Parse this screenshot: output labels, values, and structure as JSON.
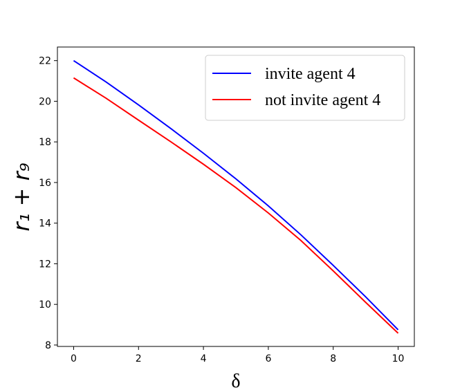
{
  "chart_data": {
    "type": "line",
    "xlabel": "δ",
    "ylabel": "r₁ + r₉",
    "x": [
      0,
      1,
      2,
      3,
      4,
      5,
      6,
      7,
      8,
      9,
      10
    ],
    "series": [
      {
        "name": "invite agent 4",
        "color": "#0000ff",
        "values": [
          22.0,
          20.95,
          19.82,
          18.65,
          17.44,
          16.18,
          14.85,
          13.43,
          11.92,
          10.37,
          8.75
        ]
      },
      {
        "name": "not invite agent 4",
        "color": "#ff0000",
        "values": [
          21.15,
          20.15,
          19.07,
          18.0,
          16.9,
          15.75,
          14.5,
          13.15,
          11.65,
          10.1,
          8.58
        ]
      }
    ],
    "xlim": [
      -0.5,
      10.5
    ],
    "xticks": [
      0,
      2,
      4,
      6,
      8,
      10
    ],
    "ylim": [
      7.93,
      22.67
    ],
    "yticks": [
      8,
      10,
      12,
      14,
      16,
      18,
      20,
      22
    ],
    "legend": "upper right",
    "grid": false
  }
}
